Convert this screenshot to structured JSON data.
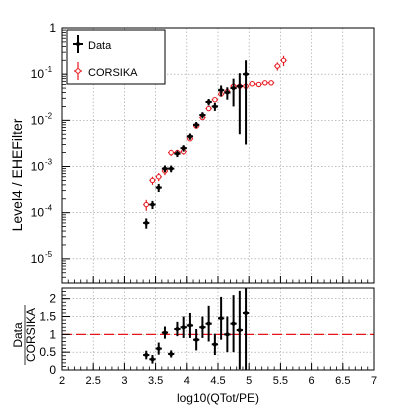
{
  "chart_data": [
    {
      "type": "scatter",
      "panel": "upper",
      "ylabel": "Level4 / EHEFilter",
      "yscale": "log",
      "xlim": [
        2,
        7
      ],
      "ylim": [
        3e-06,
        1
      ],
      "grid": true,
      "legend_placement": "top-left",
      "y_tick_labels": [
        {
          "value": 1e-05,
          "label": "10",
          "exp": "-5"
        },
        {
          "value": 0.0001,
          "label": "10",
          "exp": "-4"
        },
        {
          "value": 0.001,
          "label": "10",
          "exp": "-3"
        },
        {
          "value": 0.01,
          "label": "10",
          "exp": "-2"
        },
        {
          "value": 0.1,
          "label": "10",
          "exp": "-1"
        },
        {
          "value": 1,
          "label": "1",
          "exp": ""
        }
      ],
      "series": [
        {
          "name": "Data",
          "color": "#000000",
          "x": [
            3.35,
            3.45,
            3.55,
            3.65,
            3.75,
            3.85,
            3.95,
            4.05,
            4.15,
            4.25,
            4.35,
            4.45,
            4.55,
            4.65,
            4.75,
            4.85,
            4.95
          ],
          "y": [
            6e-05,
            0.00015,
            0.00035,
            0.0009,
            0.0009,
            0.0019,
            0.0025,
            0.0045,
            0.008,
            0.013,
            0.025,
            0.02,
            0.045,
            0.04,
            0.05,
            0.055,
            0.1
          ],
          "yerr_lo": [
            1.5e-05,
            3e-05,
            7e-05,
            0.00015,
            0.00015,
            0.0003,
            0.0004,
            0.0007,
            0.0012,
            0.002,
            0.004,
            0.004,
            0.012,
            0.012,
            0.03,
            0.05,
            0.097
          ],
          "yerr_hi": [
            1.5e-05,
            3e-05,
            7e-05,
            0.00015,
            0.00015,
            0.0003,
            0.0004,
            0.0007,
            0.0012,
            0.002,
            0.004,
            0.004,
            0.012,
            0.012,
            0.03,
            0.05,
            0.1
          ]
        },
        {
          "name": "CORSIKA",
          "color": "#e8141b",
          "x": [
            3.35,
            3.45,
            3.55,
            3.65,
            3.75,
            3.85,
            3.95,
            4.05,
            4.15,
            4.25,
            4.35,
            4.45,
            4.55,
            4.65,
            4.75,
            4.85,
            4.95,
            5.05,
            5.15,
            5.25,
            5.35,
            5.45,
            5.55
          ],
          "y": [
            0.00015,
            0.0005,
            0.0006,
            0.0008,
            0.002,
            0.002,
            0.0021,
            0.004,
            0.0075,
            0.0115,
            0.018,
            0.028,
            0.037,
            0.042,
            0.055,
            0.055,
            0.055,
            0.062,
            0.06,
            0.065,
            0.065,
            0.15,
            0.2
          ],
          "yerr_lo": [
            4e-05,
            0.0001,
            0.00012,
            0.00015,
            0.0003,
            0.0003,
            0.0003,
            0.0005,
            0.0009,
            0.0013,
            0.002,
            0.003,
            0.004,
            0.005,
            0.006,
            0.006,
            0.006,
            0.007,
            0.007,
            0.008,
            0.008,
            0.03,
            0.05
          ],
          "yerr_hi": [
            4e-05,
            0.0001,
            0.00012,
            0.00015,
            0.0003,
            0.0003,
            0.0003,
            0.0005,
            0.0009,
            0.0013,
            0.002,
            0.003,
            0.004,
            0.005,
            0.006,
            0.006,
            0.006,
            0.007,
            0.007,
            0.008,
            0.008,
            0.03,
            0.05
          ]
        }
      ]
    },
    {
      "type": "scatter",
      "panel": "lower",
      "xlabel": "log10(QTot/PE)",
      "ylabel_num": "Data",
      "ylabel_den": "CORSIKA",
      "xlim": [
        2,
        7
      ],
      "ylim": [
        0,
        2.3
      ],
      "grid": true,
      "x_ticks": [
        2,
        2.5,
        3,
        3.5,
        4,
        4.5,
        5,
        5.5,
        6,
        6.5,
        7
      ],
      "x_tick_labels": [
        "2",
        "2.5",
        "3",
        "3.5",
        "4",
        "4.5",
        "5",
        "5.5",
        "6",
        "6.5",
        "7"
      ],
      "y_ticks": [
        0,
        0.5,
        1,
        1.5,
        2
      ],
      "y_tick_labels": [
        "0",
        "0.5",
        "1",
        "1.5",
        "2"
      ],
      "reference_line": {
        "y": 1,
        "color": "#e8141b",
        "style": "dashed"
      },
      "series": [
        {
          "name": "Data/CORSIKA",
          "color": "#000000",
          "x": [
            3.35,
            3.45,
            3.55,
            3.65,
            3.75,
            3.85,
            3.95,
            4.05,
            4.15,
            4.25,
            4.35,
            4.45,
            4.55,
            4.65,
            4.75,
            4.85,
            4.95
          ],
          "y": [
            0.42,
            0.3,
            0.6,
            1.05,
            0.45,
            1.15,
            1.2,
            1.25,
            0.85,
            1.2,
            1.3,
            0.72,
            1.45,
            1.0,
            1.3,
            1.12,
            1.6
          ],
          "yerr_lo": [
            0.12,
            0.12,
            0.17,
            0.17,
            0.1,
            0.2,
            0.3,
            0.35,
            0.3,
            0.3,
            0.5,
            0.3,
            0.6,
            0.5,
            0.8,
            1.1,
            1.6
          ],
          "yerr_hi": [
            0.12,
            0.12,
            0.17,
            0.17,
            0.1,
            0.2,
            0.3,
            0.35,
            0.3,
            0.3,
            0.5,
            0.3,
            0.6,
            0.5,
            0.8,
            1.1,
            0.7
          ]
        }
      ]
    }
  ]
}
